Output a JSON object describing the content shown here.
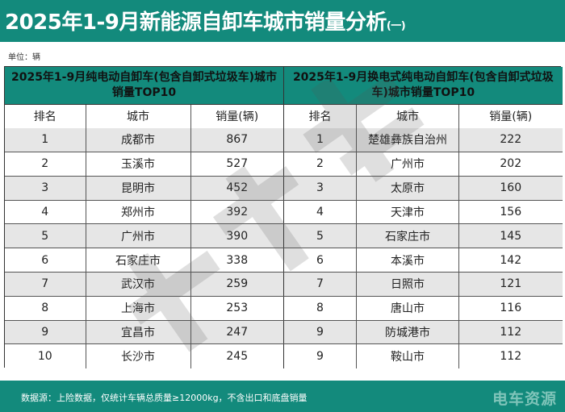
{
  "header": {
    "title": "2025年1-9月新能源自卸车城市销量分析",
    "title_suffix": "(一)"
  },
  "unit_label": "单位：辆",
  "tables": [
    {
      "group_title": "2025年1-9月纯电动自卸车(包含自卸式垃圾车)城市销量TOP10",
      "columns": [
        "排名",
        "城市",
        "销量(辆)"
      ],
      "rows": [
        {
          "rank": "1",
          "city": "成都市",
          "sales": "867"
        },
        {
          "rank": "2",
          "city": "玉溪市",
          "sales": "527"
        },
        {
          "rank": "3",
          "city": "昆明市",
          "sales": "452"
        },
        {
          "rank": "4",
          "city": "郑州市",
          "sales": "392"
        },
        {
          "rank": "5",
          "city": "广州市",
          "sales": "390"
        },
        {
          "rank": "6",
          "city": "石家庄市",
          "sales": "338"
        },
        {
          "rank": "7",
          "city": "武汉市",
          "sales": "259"
        },
        {
          "rank": "8",
          "city": "上海市",
          "sales": "253"
        },
        {
          "rank": "9",
          "city": "宜昌市",
          "sales": "247"
        },
        {
          "rank": "10",
          "city": "长沙市",
          "sales": "245"
        }
      ]
    },
    {
      "group_title": "2025年1-9月换电式纯电动自卸车(包含自卸式垃圾车)城市销量TOP10",
      "columns": [
        "排名",
        "城市",
        "销量(辆)"
      ],
      "rows": [
        {
          "rank": "1",
          "city": "楚雄彝族自治州",
          "sales": "222"
        },
        {
          "rank": "2",
          "city": "广州市",
          "sales": "202"
        },
        {
          "rank": "3",
          "city": "太原市",
          "sales": "160"
        },
        {
          "rank": "4",
          "city": "天津市",
          "sales": "156"
        },
        {
          "rank": "5",
          "city": "石家庄市",
          "sales": "145"
        },
        {
          "rank": "6",
          "city": "本溪市",
          "sales": "142"
        },
        {
          "rank": "7",
          "city": "日照市",
          "sales": "121"
        },
        {
          "rank": "8",
          "city": "唐山市",
          "sales": "116"
        },
        {
          "rank": "9",
          "city": "防城港市",
          "sales": "112"
        },
        {
          "rank": "9",
          "city": "鞍山市",
          "sales": "112"
        }
      ]
    }
  ],
  "footer": {
    "source": "数据源：上险数据，仅统计车辆总质量≥12000kg，不含出口和底盘销量",
    "logo": "电车资源"
  },
  "colors": {
    "brand_teal": "#138a7c",
    "row_stripe": "#e6e6e6",
    "logo_text": "#7fc4b9"
  }
}
